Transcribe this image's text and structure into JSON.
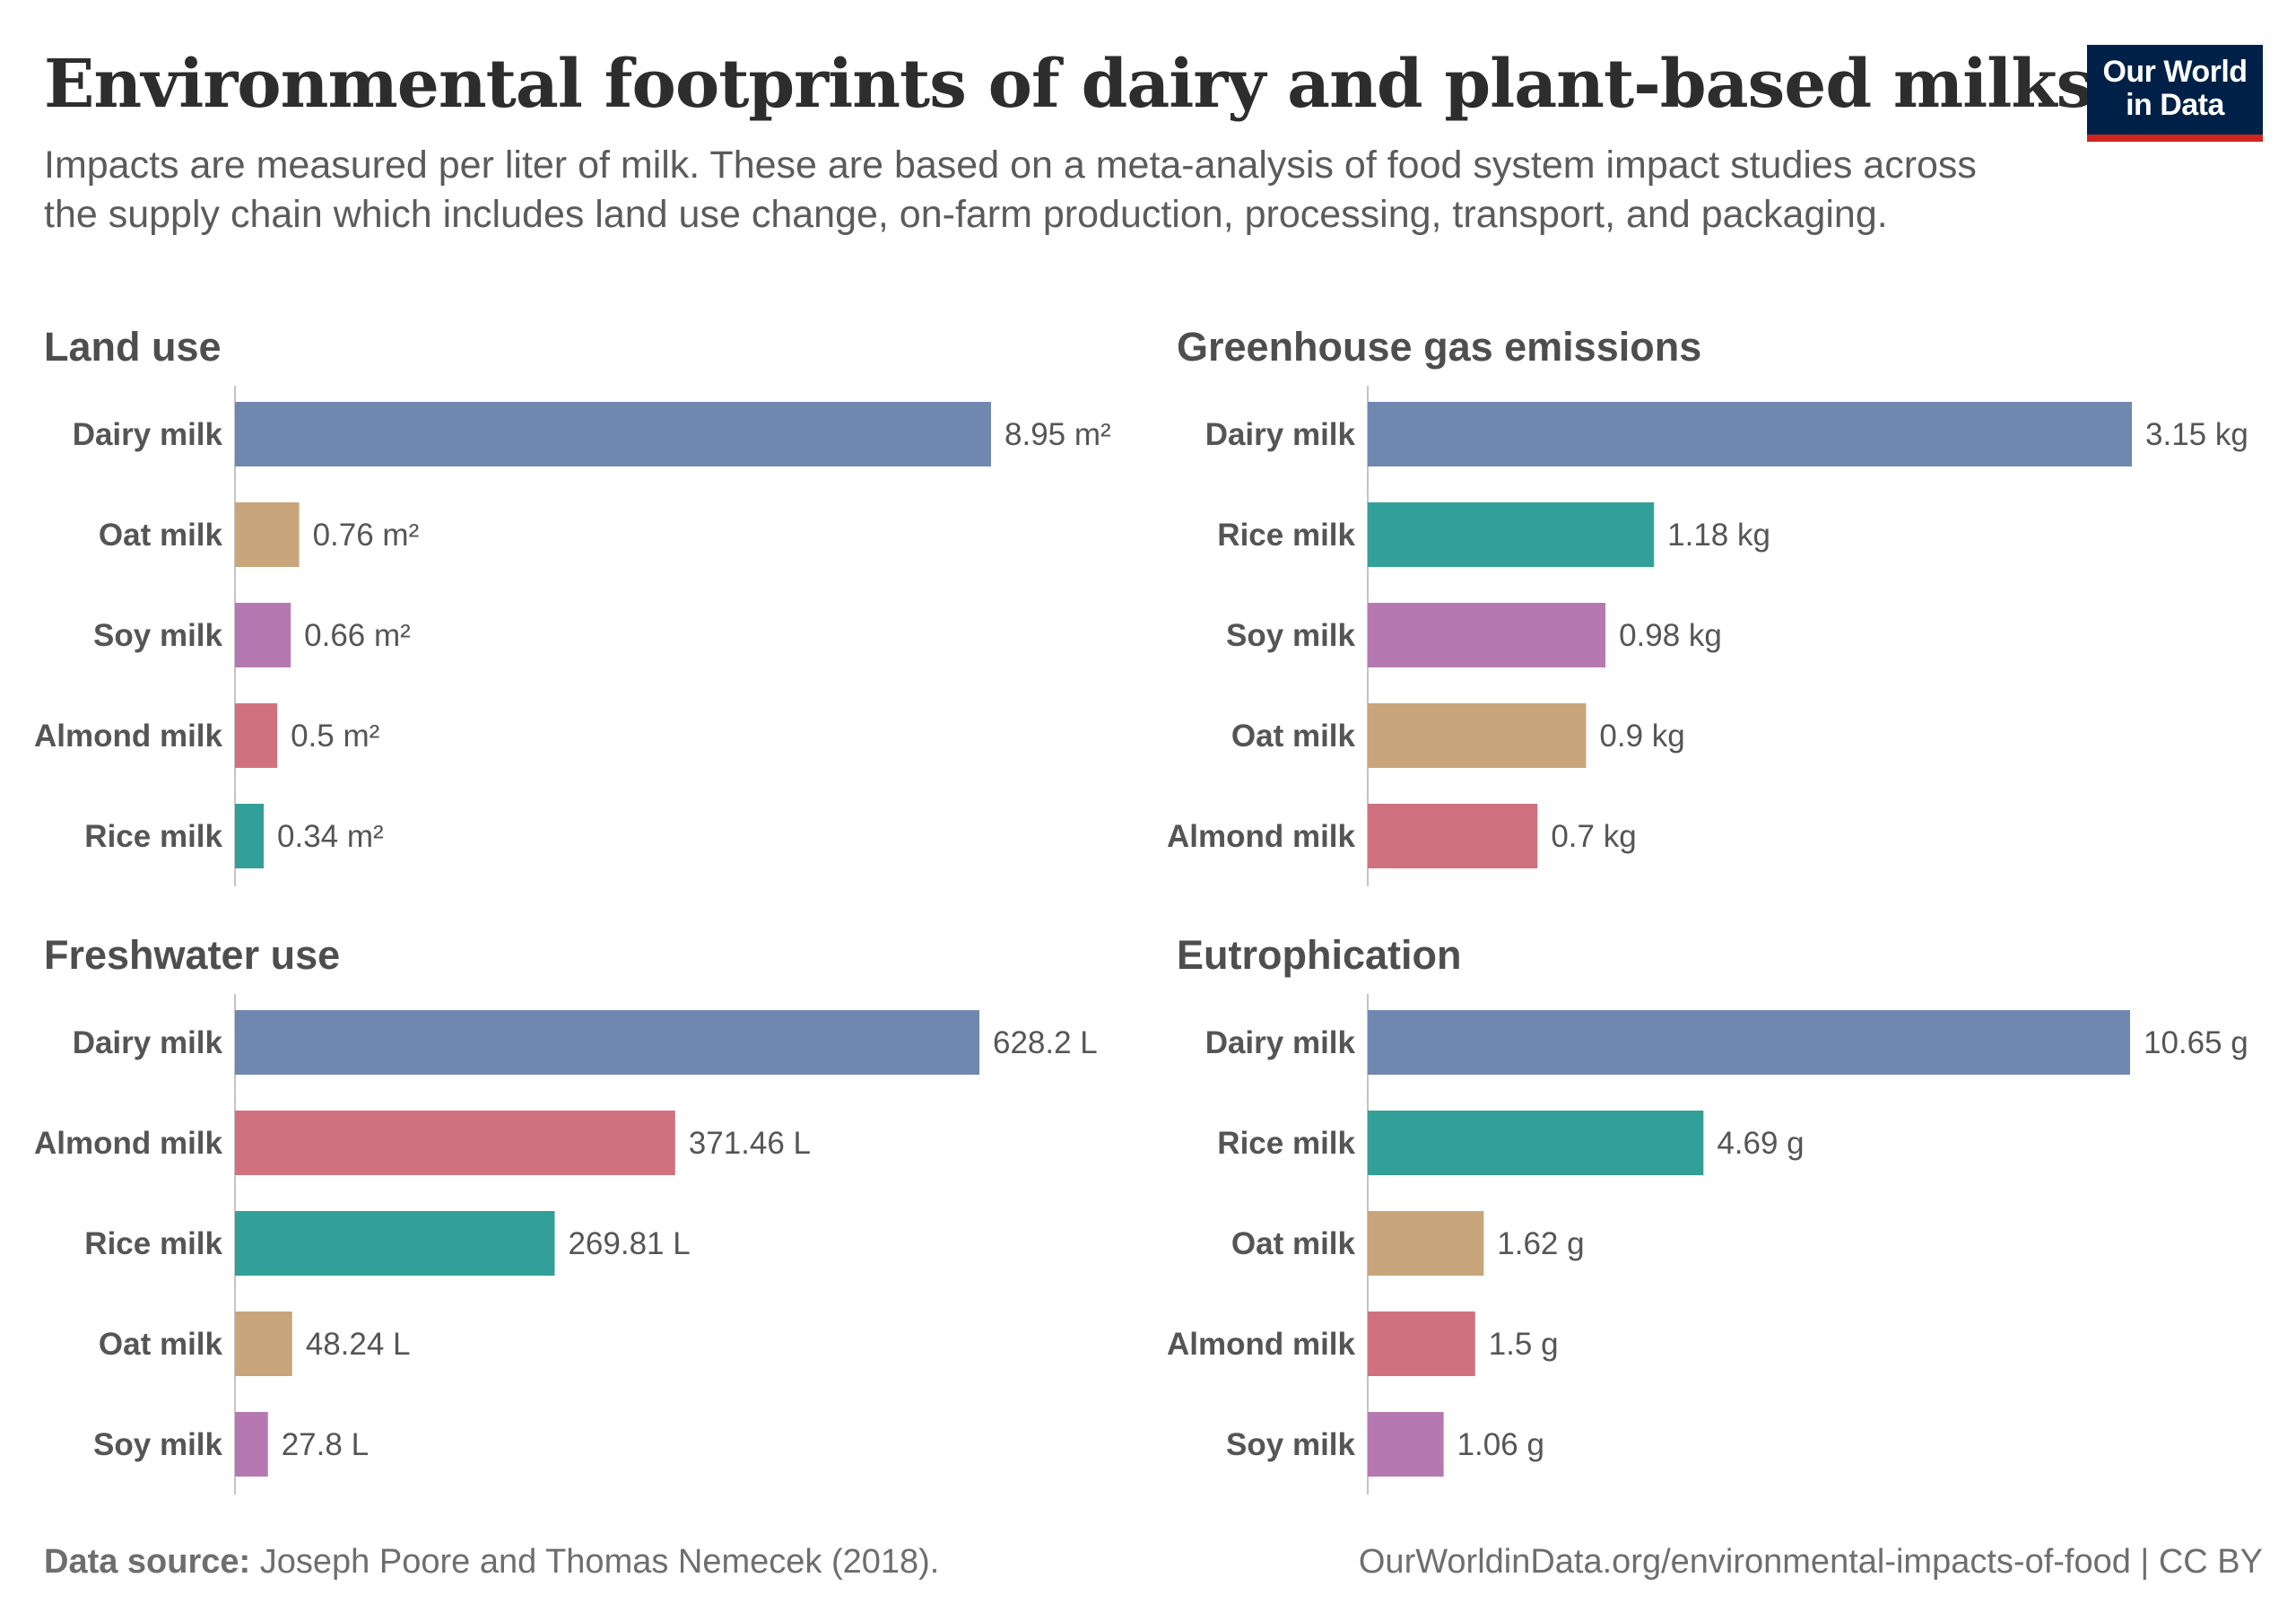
{
  "header": {
    "title": "Environmental footprints of dairy and plant-based milks",
    "subtitle": "Impacts are measured per liter of milk. These are based on a meta-analysis of food system impact studies across the supply chain which includes land use change, on-farm production, processing, transport, and packaging."
  },
  "logo": {
    "line1": "Our World",
    "line2": "in Data"
  },
  "footer": {
    "source_label": "Data source:",
    "source_text": " Joseph Poore and Thomas Nemecek (2018).",
    "link": "OurWorldinData.org/environmental-impacts-of-food | CC BY"
  },
  "colors": {
    "Dairy milk": "#7087b0",
    "Oat milk": "#c8a57a",
    "Soy milk": "#b678b0",
    "Almond milk": "#cf717f",
    "Rice milk": "#32a098"
  },
  "chart_data": [
    {
      "type": "bar",
      "orientation": "horizontal",
      "title": "Land use",
      "categories": [
        "Dairy milk",
        "Oat milk",
        "Soy milk",
        "Almond milk",
        "Rice milk"
      ],
      "values": [
        8.95,
        0.76,
        0.66,
        0.5,
        0.34
      ],
      "labels": [
        "8.95 m²",
        "0.76 m²",
        "0.66 m²",
        "0.5 m²",
        "0.34 m²"
      ],
      "unit": "m²"
    },
    {
      "type": "bar",
      "orientation": "horizontal",
      "title": "Greenhouse gas emissions",
      "categories": [
        "Dairy milk",
        "Rice milk",
        "Soy milk",
        "Oat milk",
        "Almond milk"
      ],
      "values": [
        3.15,
        1.18,
        0.98,
        0.9,
        0.7
      ],
      "labels": [
        "3.15 kg",
        "1.18 kg",
        "0.98 kg",
        "0.9 kg",
        "0.7 kg"
      ],
      "unit": "kg"
    },
    {
      "type": "bar",
      "orientation": "horizontal",
      "title": "Freshwater use",
      "categories": [
        "Dairy milk",
        "Almond milk",
        "Rice milk",
        "Oat milk",
        "Soy milk"
      ],
      "values": [
        628.2,
        371.46,
        269.81,
        48.24,
        27.8
      ],
      "labels": [
        "628.2 L",
        "371.46 L",
        "269.81 L",
        "48.24 L",
        "27.8 L"
      ],
      "unit": "L"
    },
    {
      "type": "bar",
      "orientation": "horizontal",
      "title": "Eutrophication",
      "categories": [
        "Dairy milk",
        "Rice milk",
        "Oat milk",
        "Almond milk",
        "Soy milk"
      ],
      "values": [
        10.65,
        4.69,
        1.62,
        1.5,
        1.06
      ],
      "labels": [
        "10.65 g",
        "4.69 g",
        "1.62 g",
        "1.5 g",
        "1.06 g"
      ],
      "unit": "g"
    }
  ]
}
